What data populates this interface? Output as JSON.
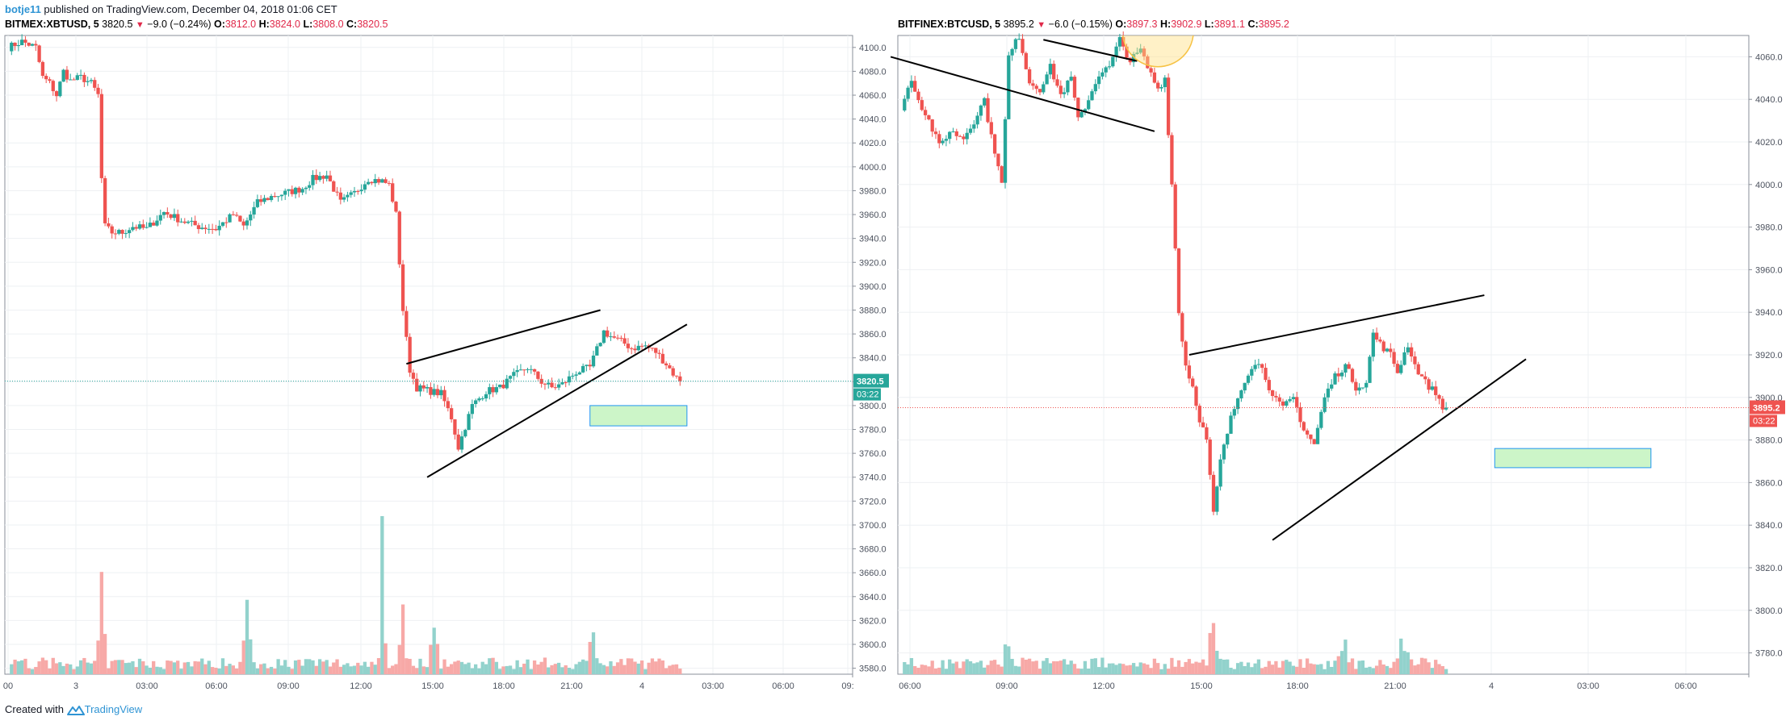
{
  "header": {
    "author": "botje11",
    "published_text": "published on TradingView.com, December 04, 2018 01:06 CET"
  },
  "footer": {
    "created_with": "Created with",
    "brand": "TradingView"
  },
  "colors": {
    "up": "#26a69a",
    "down": "#ef5350",
    "up_volume": "#92d2cc",
    "down_volume": "#f7a9a7",
    "box_fill": "#ccf5c8",
    "box_border": "#2196f3",
    "grid": "#eef0f3",
    "trendline": "#000000",
    "highlight": "#ffe082"
  },
  "panels": [
    {
      "id": "left",
      "symbol": "BITMEX:XBTUSD, 5",
      "last": "3820.5",
      "change": "−9.0 (−0.24%)",
      "open_label": "O:",
      "open": "3812.0",
      "high_label": "H:",
      "high": "3824.0",
      "low_label": "L:",
      "low": "3808.0",
      "close_label": "C:",
      "close": "3820.5",
      "price_tag": "3820.5",
      "countdown": "03:22",
      "last_price_color": "#26a69a"
    },
    {
      "id": "right",
      "symbol": "BITFINEX:BTCUSD, 5",
      "last": "3895.2",
      "change": "−6.0 (−0.15%)",
      "open_label": "O:",
      "open": "3897.3",
      "high_label": "H:",
      "high": "3902.9",
      "low_label": "L:",
      "low": "3891.1",
      "close_label": "C:",
      "close": "3895.2",
      "price_tag": "3895.2",
      "countdown": "03:22",
      "last_price_color": "#ef5350"
    }
  ],
  "chart_data": [
    {
      "type": "candlestick",
      "symbol": "BITMEX:XBTUSD",
      "interval": "5",
      "ylim": [
        3575,
        4110
      ],
      "y_ticks": [
        "3580.0",
        "3600.0",
        "3620.0",
        "3640.0",
        "3660.0",
        "3680.0",
        "3700.0",
        "3720.0",
        "3740.0",
        "3760.0",
        "3780.0",
        "3800.0",
        "3820.0",
        "3840.0",
        "3860.0",
        "3880.0",
        "3900.0",
        "3920.0",
        "3940.0",
        "3960.0",
        "3980.0",
        "4000.0",
        "4020.0",
        "4040.0",
        "4060.0",
        "4080.0",
        "4100.0"
      ],
      "x_ticks": [
        "00",
        "3",
        "03:00",
        "06:00",
        "09:00",
        "12:00",
        "15:00",
        "18:00",
        "21:00",
        "4",
        "03:00",
        "06:00",
        "09:"
      ],
      "price_path": [
        [
          0,
          4100
        ],
        [
          4,
          4105
        ],
        [
          8,
          4100
        ],
        [
          10,
          4075
        ],
        [
          12,
          4070
        ],
        [
          14,
          4060
        ],
        [
          16,
          4080
        ],
        [
          18,
          4072
        ],
        [
          21,
          4075
        ],
        [
          24,
          4070
        ],
        [
          26,
          4060
        ],
        [
          27,
          3990
        ],
        [
          28,
          3950
        ],
        [
          30,
          3945
        ],
        [
          33,
          3945
        ],
        [
          36,
          3950
        ],
        [
          40,
          3948
        ],
        [
          45,
          3962
        ],
        [
          50,
          3955
        ],
        [
          55,
          3950
        ],
        [
          60,
          3948
        ],
        [
          65,
          3960
        ],
        [
          68,
          3950
        ],
        [
          72,
          3970
        ],
        [
          76,
          3975
        ],
        [
          80,
          3978
        ],
        [
          85,
          3982
        ],
        [
          88,
          3990
        ],
        [
          92,
          3993
        ],
        [
          96,
          3970
        ],
        [
          100,
          3978
        ],
        [
          104,
          3990
        ],
        [
          108,
          3988
        ],
        [
          110,
          3985
        ],
        [
          112,
          3960
        ],
        [
          114,
          3880
        ],
        [
          116,
          3830
        ],
        [
          118,
          3815
        ],
        [
          122,
          3812
        ],
        [
          125,
          3810
        ],
        [
          128,
          3790
        ],
        [
          130,
          3765
        ],
        [
          134,
          3800
        ],
        [
          138,
          3812
        ],
        [
          142,
          3815
        ],
        [
          146,
          3825
        ],
        [
          150,
          3832
        ],
        [
          154,
          3820
        ],
        [
          157,
          3815
        ],
        [
          160,
          3818
        ],
        [
          164,
          3828
        ],
        [
          168,
          3832
        ],
        [
          172,
          3862
        ],
        [
          174,
          3858
        ],
        [
          178,
          3852
        ],
        [
          180,
          3848
        ],
        [
          184,
          3850
        ],
        [
          187,
          3845
        ],
        [
          190,
          3835
        ],
        [
          193,
          3823
        ],
        [
          194,
          3820.5
        ]
      ],
      "volume_spikes": [
        [
          27,
          2.2
        ],
        [
          69,
          1.6
        ],
        [
          108,
          3.4
        ],
        [
          114,
          1.5
        ],
        [
          123,
          1.0
        ],
        [
          169,
          0.9
        ]
      ],
      "last_price": 3820.5,
      "trendlines": [
        {
          "from": [
            115,
            3835
          ],
          "to": [
            171,
            3880
          ]
        },
        {
          "from": [
            121,
            3740
          ],
          "to": [
            196,
            3868
          ]
        }
      ],
      "target_box": {
        "x0": 168,
        "x1": 196,
        "y0": 3783,
        "y1": 3800
      }
    },
    {
      "type": "candlestick",
      "symbol": "BITFINEX:BTCUSD",
      "interval": "5",
      "ylim": [
        3770,
        4070
      ],
      "y_ticks": [
        "3780.0",
        "3800.0",
        "3820.0",
        "3840.0",
        "3860.0",
        "3880.0",
        "3900.0",
        "3920.0",
        "3940.0",
        "3960.0",
        "3980.0",
        "4000.0",
        "4020.0",
        "4040.0",
        "4060.0"
      ],
      "x_ticks": [
        "06:00",
        "09:00",
        "12:00",
        "15:00",
        "18:00",
        "21:00",
        "4",
        "03:00",
        "06:00"
      ],
      "price_path": [
        [
          0,
          4035
        ],
        [
          3,
          4050
        ],
        [
          5,
          4040
        ],
        [
          8,
          4030
        ],
        [
          11,
          4018
        ],
        [
          14,
          4025
        ],
        [
          18,
          4022
        ],
        [
          21,
          4030
        ],
        [
          24,
          4040
        ],
        [
          26,
          4022
        ],
        [
          28,
          4010
        ],
        [
          29,
          4000
        ],
        [
          31,
          4060
        ],
        [
          34,
          4070
        ],
        [
          37,
          4048
        ],
        [
          40,
          4045
        ],
        [
          43,
          4055
        ],
        [
          46,
          4042
        ],
        [
          49,
          4050
        ],
        [
          51,
          4030
        ],
        [
          54,
          4040
        ],
        [
          57,
          4052
        ],
        [
          60,
          4055
        ],
        [
          63,
          4068
        ],
        [
          66,
          4058
        ],
        [
          69,
          4063
        ],
        [
          71,
          4055
        ],
        [
          74,
          4045
        ],
        [
          76,
          4050
        ],
        [
          78,
          4000
        ],
        [
          80,
          3940
        ],
        [
          82,
          3915
        ],
        [
          84,
          3905
        ],
        [
          86,
          3890
        ],
        [
          88,
          3880
        ],
        [
          90,
          3845
        ],
        [
          92,
          3870
        ],
        [
          95,
          3890
        ],
        [
          98,
          3905
        ],
        [
          101,
          3915
        ],
        [
          104,
          3915
        ],
        [
          107,
          3900
        ],
        [
          110,
          3895
        ],
        [
          113,
          3900
        ],
        [
          116,
          3885
        ],
        [
          119,
          3878
        ],
        [
          122,
          3900
        ],
        [
          125,
          3910
        ],
        [
          128,
          3915
        ],
        [
          131,
          3905
        ],
        [
          134,
          3907
        ],
        [
          136,
          3930
        ],
        [
          138,
          3925
        ],
        [
          141,
          3920
        ],
        [
          143,
          3912
        ],
        [
          146,
          3925
        ],
        [
          148,
          3915
        ],
        [
          151,
          3907
        ],
        [
          154,
          3902
        ],
        [
          156,
          3896
        ],
        [
          157,
          3895.2
        ]
      ],
      "volume_spikes": [
        [
          31,
          0.6
        ],
        [
          90,
          1.1
        ],
        [
          127,
          0.5
        ],
        [
          145,
          0.5
        ]
      ],
      "last_price": 3895.2,
      "trendlines": [
        {
          "from": [
            -3,
            4060
          ],
          "to": [
            73,
            4025
          ]
        },
        {
          "from": [
            41,
            4068
          ],
          "to": [
            68,
            4058
          ]
        },
        {
          "from": [
            83,
            3920
          ],
          "to": [
            168,
            3948
          ]
        },
        {
          "from": [
            107,
            3833
          ],
          "to": [
            180,
            3918
          ]
        }
      ],
      "target_box": {
        "x0": 171,
        "x1": 216,
        "y0": 3867,
        "y1": 3876
      },
      "highlight_circle": {
        "x": 74,
        "y": 4072
      }
    }
  ]
}
